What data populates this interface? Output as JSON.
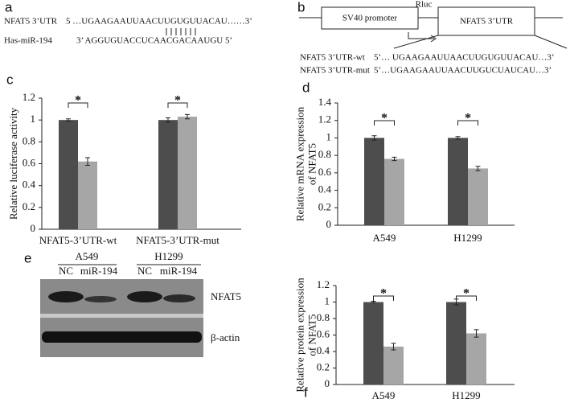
{
  "panels": {
    "a": {
      "label": "a",
      "utr_name": "NFAT5 3’UTR",
      "utr_seq": "5 …UGAAGAAUUAACUUGUGUUACAU……3’",
      "mirna_name": "Has-miR-194",
      "mirna_seq": "3’  AGGUGUACCUCAACGACAAUGU  5’"
    },
    "b": {
      "label": "b",
      "promoter": "SV40 promoter",
      "reporter": "Rluc",
      "utr": "NFAT5 3’UTR",
      "wt_name": "NFAT5 3’UTR-wt",
      "wt_seq": "5’… UGAAGAAUUAACUUGUGUUACAU…3’",
      "mut_name": "NFAT5 3’UTR-mut",
      "mut_seq": "5’…UGAAGAAUUAACUUGUCUAUCAU…3’"
    },
    "e": {
      "label": "e",
      "cell_lines": [
        "A549",
        "H1299"
      ],
      "lanes": [
        "NC",
        "miR-194",
        "NC",
        "miR-194"
      ],
      "proteins": [
        "NFAT5",
        "β-actin"
      ]
    }
  },
  "chart_data": [
    {
      "type": "bar",
      "panel": "c",
      "ylabel": [
        "Relative luciferase activity"
      ],
      "categories": [
        "NFAT5-3’UTR-wt",
        "NFAT5-3’UTR-mut"
      ],
      "series": [
        {
          "color": "#4d4d4d",
          "values": [
            1.0,
            1.0
          ],
          "errors": [
            0.01,
            0.02
          ]
        },
        {
          "color": "#a6a6a6",
          "values": [
            0.62,
            1.03
          ],
          "errors": [
            0.035,
            0.02
          ]
        }
      ],
      "ylim": [
        0,
        1.2
      ],
      "yticks": [
        0,
        0.2,
        0.4,
        0.6,
        0.8,
        1,
        1.2
      ],
      "significance": [
        "*",
        "*"
      ]
    },
    {
      "type": "bar",
      "panel": "d",
      "ylabel": [
        "Relative mRNA expression",
        "of  NFAT5"
      ],
      "categories": [
        "A549",
        "H1299"
      ],
      "series": [
        {
          "color": "#4d4d4d",
          "values": [
            1.0,
            1.0
          ],
          "errors": [
            0.025,
            0.015
          ]
        },
        {
          "color": "#a6a6a6",
          "values": [
            0.76,
            0.65
          ],
          "errors": [
            0.02,
            0.025
          ]
        }
      ],
      "ylim": [
        0,
        1.4
      ],
      "yticks": [
        0,
        0.2,
        0.4,
        0.6,
        0.8,
        1,
        1.2,
        1.4
      ],
      "significance": [
        "*",
        "*"
      ]
    },
    {
      "type": "bar",
      "panel": "f",
      "ylabel": [
        "Relative protein expression",
        "of  NFAT5"
      ],
      "categories": [
        "A549",
        "H1299"
      ],
      "series": [
        {
          "color": "#4d4d4d",
          "values": [
            1.0,
            1.0
          ],
          "errors": [
            0.01,
            0.035
          ]
        },
        {
          "color": "#a6a6a6",
          "values": [
            0.46,
            0.62
          ],
          "errors": [
            0.04,
            0.045
          ]
        }
      ],
      "ylim": [
        0,
        1.2
      ],
      "yticks": [
        0,
        0.2,
        0.4,
        0.6,
        0.8,
        1,
        1.2
      ],
      "significance": [
        "*",
        "*"
      ]
    }
  ]
}
